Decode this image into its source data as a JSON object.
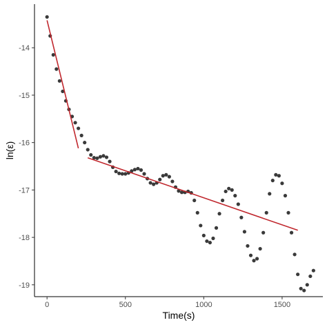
{
  "chart_data": {
    "type": "scatter",
    "title": "",
    "xlabel": "Time(s)",
    "ylabel": "ln(ε)",
    "xlim": [
      -80,
      1760
    ],
    "ylim": [
      -19.25,
      -13.08
    ],
    "xticks": [
      0,
      500,
      1000,
      1500
    ],
    "xtick_labels": [
      "0",
      "500",
      "1000",
      "1500"
    ],
    "yticks": [
      -14,
      -15,
      -16,
      -17,
      -18,
      -19
    ],
    "ytick_labels": [
      "-14",
      "-15",
      "-16",
      "-17",
      "-18",
      "-19"
    ],
    "grid": false,
    "legend": "none",
    "series": [
      {
        "kind": "points",
        "color": "#3a3a3a",
        "points": [
          [
            0,
            -13.35
          ],
          [
            20,
            -13.75
          ],
          [
            40,
            -14.15
          ],
          [
            60,
            -14.45
          ],
          [
            80,
            -14.7
          ],
          [
            100,
            -14.92
          ],
          [
            120,
            -15.12
          ],
          [
            140,
            -15.3
          ],
          [
            160,
            -15.45
          ],
          [
            180,
            -15.58
          ],
          [
            200,
            -15.7
          ],
          [
            220,
            -15.85
          ],
          [
            240,
            -16.0
          ],
          [
            260,
            -16.15
          ],
          [
            280,
            -16.26
          ],
          [
            300,
            -16.32
          ],
          [
            320,
            -16.33
          ],
          [
            340,
            -16.3
          ],
          [
            360,
            -16.28
          ],
          [
            380,
            -16.31
          ],
          [
            400,
            -16.4
          ],
          [
            420,
            -16.52
          ],
          [
            440,
            -16.61
          ],
          [
            460,
            -16.65
          ],
          [
            480,
            -16.66
          ],
          [
            500,
            -16.66
          ],
          [
            520,
            -16.64
          ],
          [
            540,
            -16.6
          ],
          [
            560,
            -16.57
          ],
          [
            580,
            -16.55
          ],
          [
            600,
            -16.58
          ],
          [
            620,
            -16.66
          ],
          [
            640,
            -16.76
          ],
          [
            660,
            -16.85
          ],
          [
            680,
            -16.88
          ],
          [
            700,
            -16.85
          ],
          [
            720,
            -16.78
          ],
          [
            740,
            -16.7
          ],
          [
            760,
            -16.68
          ],
          [
            780,
            -16.72
          ],
          [
            800,
            -16.82
          ],
          [
            820,
            -16.94
          ],
          [
            840,
            -17.02
          ],
          [
            860,
            -17.05
          ],
          [
            880,
            -17.05
          ],
          [
            900,
            -17.03
          ],
          [
            920,
            -17.06
          ],
          [
            940,
            -17.22
          ],
          [
            960,
            -17.48
          ],
          [
            980,
            -17.75
          ],
          [
            1000,
            -17.96
          ],
          [
            1020,
            -18.08
          ],
          [
            1040,
            -18.11
          ],
          [
            1060,
            -18.02
          ],
          [
            1080,
            -17.8
          ],
          [
            1100,
            -17.5
          ],
          [
            1120,
            -17.22
          ],
          [
            1140,
            -17.03
          ],
          [
            1160,
            -16.97
          ],
          [
            1180,
            -17.0
          ],
          [
            1200,
            -17.12
          ],
          [
            1220,
            -17.3
          ],
          [
            1240,
            -17.58
          ],
          [
            1260,
            -17.88
          ],
          [
            1280,
            -18.18
          ],
          [
            1300,
            -18.38
          ],
          [
            1320,
            -18.49
          ],
          [
            1340,
            -18.45
          ],
          [
            1360,
            -18.24
          ],
          [
            1380,
            -17.9
          ],
          [
            1400,
            -17.48
          ],
          [
            1420,
            -17.08
          ],
          [
            1440,
            -16.8
          ],
          [
            1460,
            -16.68
          ],
          [
            1480,
            -16.7
          ],
          [
            1500,
            -16.86
          ],
          [
            1520,
            -17.12
          ],
          [
            1540,
            -17.48
          ],
          [
            1560,
            -17.9
          ],
          [
            1580,
            -18.36
          ],
          [
            1600,
            -18.78
          ],
          [
            1620,
            -19.08
          ],
          [
            1640,
            -19.12
          ],
          [
            1660,
            -19.0
          ],
          [
            1680,
            -18.82
          ],
          [
            1700,
            -18.7
          ]
        ]
      },
      {
        "kind": "line",
        "color": "#c0272d",
        "points": [
          [
            0,
            -13.42
          ],
          [
            200,
            -16.12
          ]
        ]
      },
      {
        "kind": "line",
        "color": "#c0272d",
        "points": [
          [
            260,
            -16.32
          ],
          [
            1600,
            -17.85
          ]
        ]
      }
    ]
  }
}
